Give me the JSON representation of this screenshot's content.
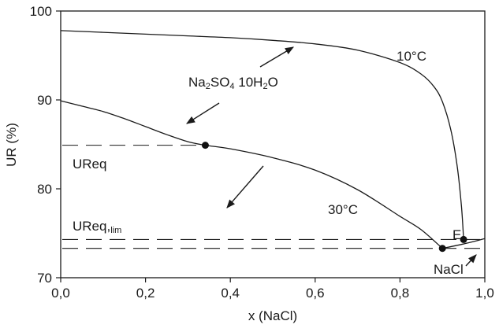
{
  "chart_data": {
    "type": "line",
    "xlabel": "x (NaCl)",
    "ylabel": "UR (%)",
    "xlim": [
      0,
      1
    ],
    "ylim": [
      70,
      100
    ],
    "x_ticks": [
      "0,0",
      "0,2",
      "0,4",
      "0,6",
      "0,8",
      "1,0"
    ],
    "y_ticks": [
      "70",
      "80",
      "90",
      "100"
    ],
    "grid": false,
    "series": [
      {
        "name": "10°C",
        "x": [
          0.0,
          0.1,
          0.2,
          0.3,
          0.4,
          0.5,
          0.6,
          0.7,
          0.8,
          0.85,
          0.88,
          0.9,
          0.92,
          0.935,
          0.945,
          0.95
        ],
        "y": [
          97.8,
          97.6,
          97.4,
          97.2,
          97.0,
          96.7,
          96.3,
          95.6,
          94.2,
          92.9,
          91.5,
          89.8,
          86.6,
          82.5,
          78.0,
          74.3
        ]
      },
      {
        "name": "30°C",
        "x": [
          0.0,
          0.05,
          0.1,
          0.15,
          0.2,
          0.25,
          0.3,
          0.341,
          0.4,
          0.5,
          0.6,
          0.7,
          0.8,
          0.85,
          0.9
        ],
        "y": [
          89.9,
          89.3,
          88.7,
          87.9,
          87.0,
          86.1,
          85.3,
          84.9,
          84.5,
          83.5,
          82.1,
          79.9,
          76.9,
          75.4,
          73.3
        ]
      },
      {
        "name": "NaCl",
        "x": [
          0.9,
          0.95,
          1.0
        ],
        "y": [
          73.3,
          73.8,
          74.4
        ]
      }
    ],
    "points": [
      {
        "label": "",
        "x": 0.341,
        "y": 84.9
      },
      {
        "label": "",
        "x": 0.9,
        "y": 73.3
      },
      {
        "label": "E",
        "x": 0.95,
        "y": 74.3
      }
    ],
    "hlines": [
      {
        "label": "UReq",
        "y": 84.9
      },
      {
        "label": "UReq,lim",
        "y": 74.3
      },
      {
        "label": "",
        "y": 73.3
      }
    ],
    "annotations": {
      "t10": "10°C",
      "t30": "30°C",
      "salt_main": "Na",
      "salt_sub1": "2",
      "salt_mid": "SO",
      "salt_sub2": "4",
      "salt_hyd": " 10H",
      "salt_sub3": "2",
      "salt_end": "O",
      "ureq": "UReq",
      "ureqlim_main": "UReq,",
      "ureqlim_sub": "lim",
      "e_label": "E",
      "nacl_label": "NaCl"
    }
  }
}
